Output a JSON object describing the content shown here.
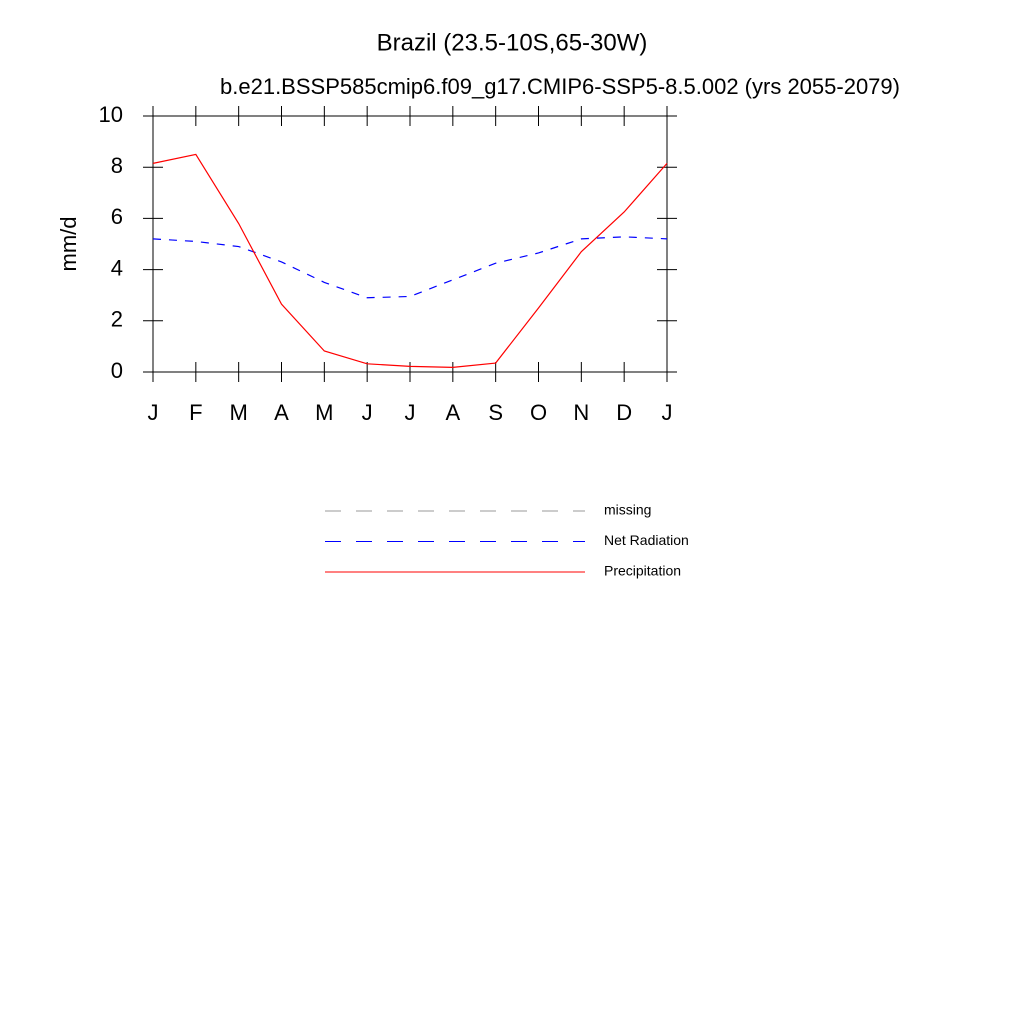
{
  "chart_data": {
    "type": "line",
    "title": "Brazil (23.5-10S,65-30W)",
    "subtitle": "b.e21.BSSP585cmip6.f09_g17.CMIP6-SSP5-8.5.002 (yrs 2055-2079)",
    "y_label": "mm/d",
    "categories": [
      "J",
      "F",
      "M",
      "A",
      "M",
      "J",
      "J",
      "A",
      "S",
      "O",
      "N",
      "D",
      "J"
    ],
    "series": [
      {
        "name": "missing",
        "color": "#999999",
        "line_style": "dashed",
        "values": [
          null,
          null,
          null,
          null,
          null,
          null,
          null,
          null,
          null,
          null,
          null,
          null,
          null
        ]
      },
      {
        "name": "Net Radiation",
        "color": "#0000ff",
        "line_style": "dashed",
        "values": [
          5.2,
          5.1,
          4.9,
          4.3,
          3.5,
          2.9,
          2.95,
          3.6,
          4.25,
          4.65,
          5.2,
          5.28,
          5.2
        ]
      },
      {
        "name": "Precipitation",
        "color": "#ff0000",
        "line_style": "solid",
        "values": [
          8.15,
          8.5,
          5.8,
          2.65,
          0.82,
          0.32,
          0.22,
          0.18,
          0.35,
          2.5,
          4.7,
          6.25,
          8.15
        ]
      }
    ],
    "ylim": [
      0,
      10
    ],
    "yticks": [
      0,
      2,
      4,
      6,
      8,
      10
    ],
    "grid": false
  }
}
